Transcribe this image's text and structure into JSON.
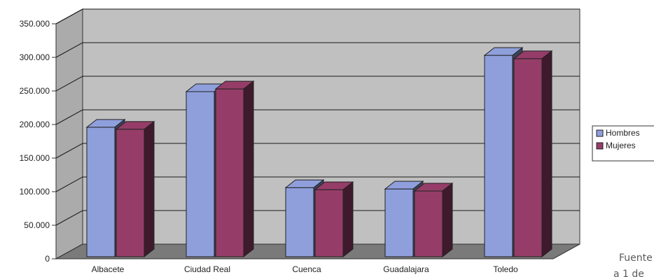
{
  "chart_data": {
    "type": "bar",
    "categories": [
      "Albacete",
      "Ciudad Real",
      "Cuenca",
      "Guadalajara",
      "Toledo"
    ],
    "series": [
      {
        "name": "Hombres",
        "values": [
          196000,
          249000,
          106000,
          104000,
          303000
        ],
        "color": "#8f9fdc"
      },
      {
        "name": "Mujeres",
        "values": [
          193000,
          253000,
          103000,
          101000,
          298000
        ],
        "color": "#953d68"
      }
    ],
    "yticks": [
      "0",
      "50.000",
      "100.000",
      "150.000",
      "200.000",
      "250.000",
      "300.000",
      "350.000"
    ],
    "ylim": [
      0,
      350000
    ],
    "grid": true,
    "legend": "right",
    "colors": {
      "wall": "#c0c0c0",
      "floor": "#7a7a7a",
      "grid": "#1a1a1a"
    }
  },
  "source_note": {
    "line1": "Fuente",
    "line2": "a 1 de"
  }
}
